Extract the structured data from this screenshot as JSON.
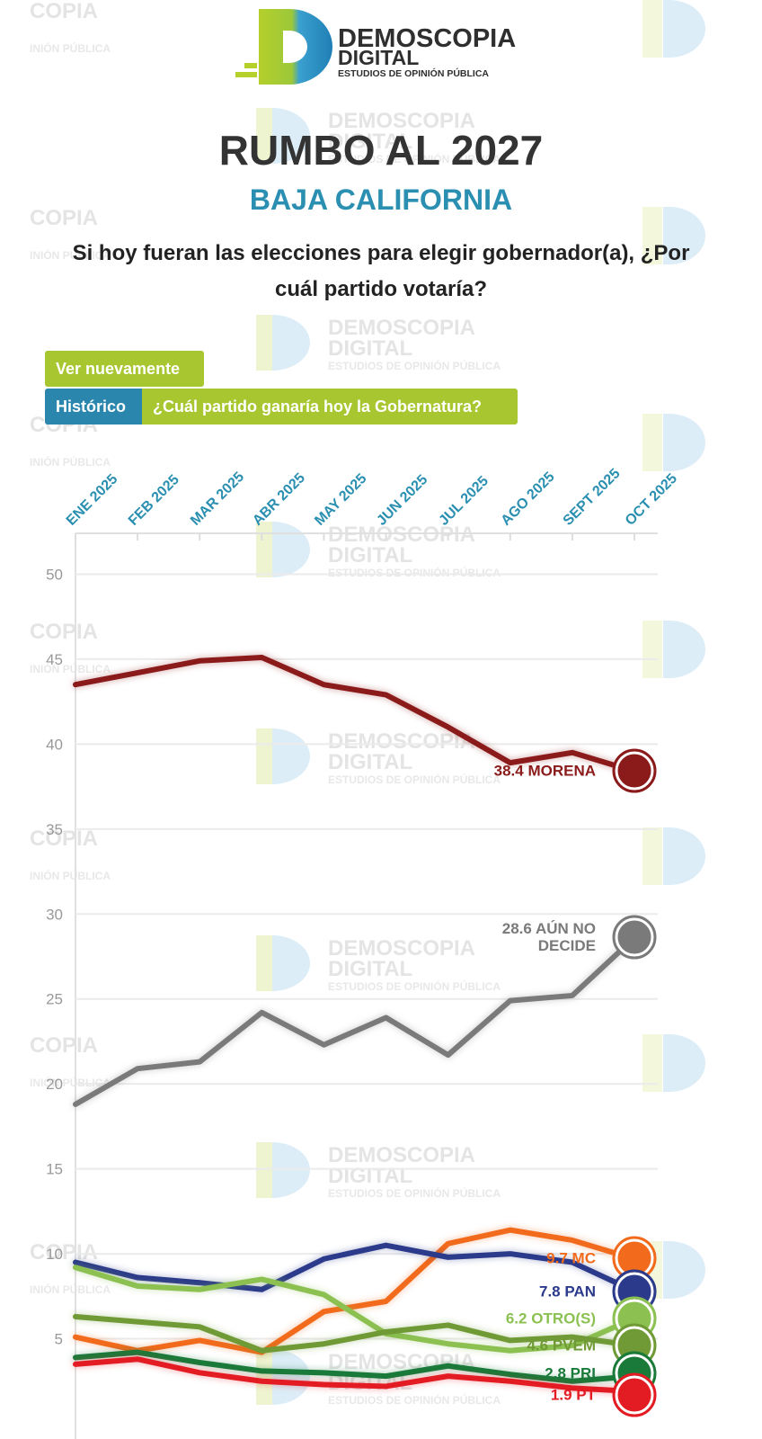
{
  "header": {
    "brand_line1": "DEMOSCOPIA",
    "brand_line2": "DIGITAL",
    "tagline": "ESTUDIOS DE OPINIÓN PÚBLICA",
    "title": "RUMBO AL 2027",
    "subtitle": "BAJA CALIFORNIA",
    "question": "Si hoy fueran las elecciones para elegir gobernador(a), ¿Por cuál partido votaría?"
  },
  "watermark": {
    "copy": "COPIA",
    "copy_sub": "INIÓN PÚBLICA"
  },
  "buttons": {
    "replay": "Ver nuevamente",
    "history": "Histórico",
    "winner": "¿Cuál partido ganaría hoy la Gobernatura?"
  },
  "chart_data": {
    "type": "line",
    "categories": [
      "ENE 2025",
      "FEB 2025",
      "MAR 2025",
      "ABR 2025",
      "MAY 2025",
      "JUN 2025",
      "JUL 2025",
      "AGO 2025",
      "SEPT 2025",
      "OCT 2025"
    ],
    "series": [
      {
        "name": "MORENA",
        "color": "#8b1a1a",
        "values": [
          43.5,
          44.2,
          44.9,
          45.1,
          43.5,
          42.9,
          41.0,
          38.9,
          39.5,
          38.4
        ]
      },
      {
        "name": "AÚN NO DECIDE",
        "color": "#7a7a7a",
        "values": [
          18.8,
          20.9,
          21.3,
          24.2,
          22.3,
          23.9,
          21.7,
          24.9,
          25.2,
          28.6
        ]
      },
      {
        "name": "MC",
        "color": "#f26a1b",
        "values": [
          5.1,
          4.3,
          4.9,
          4.2,
          6.6,
          7.2,
          10.6,
          11.4,
          10.8,
          9.7
        ]
      },
      {
        "name": "PAN",
        "color": "#2b3a8a",
        "values": [
          9.5,
          8.6,
          8.3,
          7.9,
          9.7,
          10.5,
          9.8,
          10.0,
          9.5,
          7.8
        ]
      },
      {
        "name": "OTRO(S)",
        "color": "#8cc152",
        "values": [
          9.2,
          8.1,
          7.9,
          8.5,
          7.6,
          5.3,
          4.7,
          4.3,
          4.6,
          6.2
        ]
      },
      {
        "name": "PVEM",
        "color": "#6f9a35",
        "values": [
          6.3,
          6.0,
          5.7,
          4.3,
          4.7,
          5.4,
          5.8,
          4.9,
          5.1,
          4.6
        ]
      },
      {
        "name": "PRI",
        "color": "#1a7a3a",
        "values": [
          3.9,
          4.2,
          3.6,
          3.1,
          3.0,
          2.8,
          3.4,
          2.9,
          2.5,
          2.8
        ]
      },
      {
        "name": "PT",
        "color": "#e31b23",
        "values": [
          3.5,
          3.8,
          3.0,
          2.5,
          2.3,
          2.2,
          2.8,
          2.5,
          2.1,
          1.9
        ]
      }
    ],
    "ylim": [
      -0.9,
      52.3
    ],
    "yticks": [
      5,
      10,
      15,
      20,
      25,
      30,
      35,
      40,
      45,
      50
    ],
    "grid": true
  }
}
